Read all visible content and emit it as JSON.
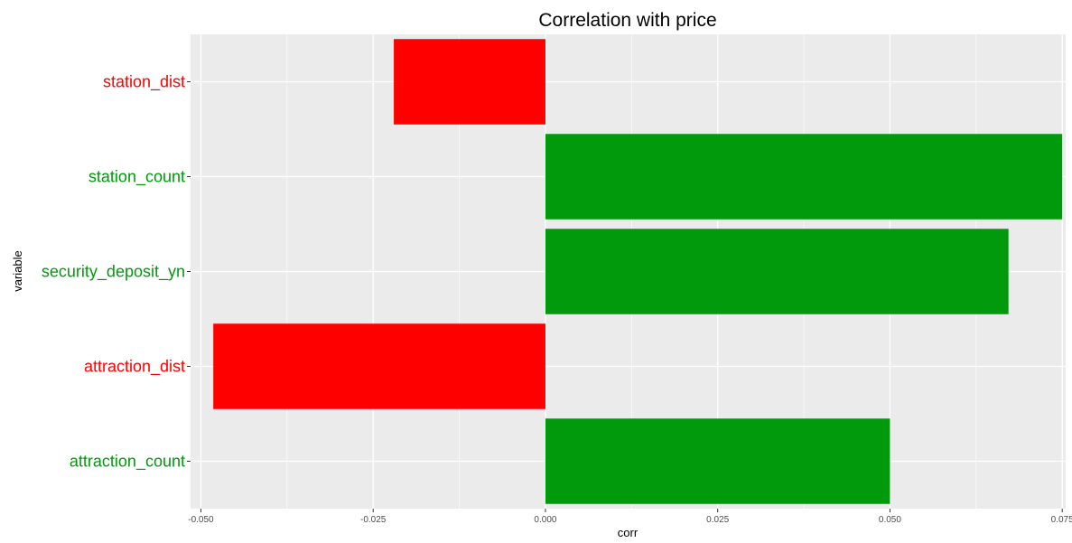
{
  "chart_data": {
    "type": "bar",
    "orientation": "horizontal",
    "title": "Correlation with price",
    "xlabel": "corr",
    "ylabel": "variable",
    "xlim": [
      -0.0515,
      0.0755
    ],
    "x_ticks": [
      -0.05,
      -0.025,
      0,
      0.025,
      0.05,
      0.075
    ],
    "x_tick_labels": [
      "-0.050",
      "-0.025",
      "0.000",
      "0.025",
      "0.050",
      "0.075"
    ],
    "grid": true,
    "categories": [
      "station_dist",
      "station_count",
      "security_deposit_yn",
      "attraction_dist",
      "attraction_count"
    ],
    "values": [
      -0.022,
      0.075,
      0.0672,
      -0.0482,
      0.05
    ],
    "colors": [
      "#ff0000",
      "#009a0c",
      "#009a0c",
      "#ff0000",
      "#009a0c"
    ],
    "background_color": "#ebebeb",
    "gridline_color": "#ffffff"
  }
}
